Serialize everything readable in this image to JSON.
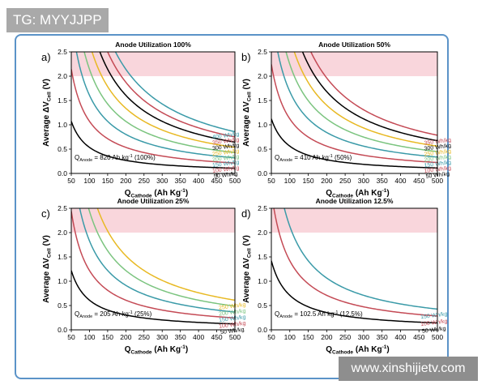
{
  "top_badge": "TG: MYYJJPP",
  "watermark": "www.xinshijietv.com",
  "chart_data": [
    {
      "panel_label": "a)",
      "type": "line",
      "title": "Anode Utilization 100%",
      "xlabel": "Q_Cathode (Ah Kg^-1)",
      "ylabel": "Average ΔV_Cell (V)",
      "xlim": [
        50,
        500
      ],
      "ylim": [
        0,
        2.5
      ],
      "xticks": [
        "50",
        "100",
        "150",
        "200",
        "250",
        "300",
        "350",
        "400",
        "450",
        "500"
      ],
      "yticks": [
        "0.0",
        "0.5",
        "1.0",
        "1.5",
        "2.0",
        "2.5"
      ],
      "shaded_band": [
        2.0,
        2.5
      ],
      "note": "Q_Anode = 820 Ah kg^-1 (100%)",
      "series": [
        {
          "name": "50 Wh/kg",
          "color": "#000000",
          "k": 53.6
        },
        {
          "name": "100 Wh/kg",
          "color": "#c44a55",
          "k": 107.2
        },
        {
          "name": "150 Wh/kg",
          "color": "#3a9aa8",
          "k": 160.7
        },
        {
          "name": "200 Wh/kg",
          "color": "#7bc47f",
          "k": 214.3
        },
        {
          "name": "250 Wh/kg",
          "color": "#e8b923",
          "k": 267.9
        },
        {
          "name": "300 Wh/kg",
          "color": "#000000",
          "k": 321.5
        },
        {
          "name": "350 Wh/kg",
          "color": "#c44a55",
          "k": 375.1
        },
        {
          "name": "400 Wh/kg",
          "color": "#3a9aa8",
          "k": 428.7
        }
      ]
    },
    {
      "panel_label": "b)",
      "type": "line",
      "title": "Anode Utilization 50%",
      "xlabel": "Q_Cathode (Ah Kg^-1)",
      "ylabel": "Average ΔV_Cell (V)",
      "xlim": [
        50,
        500
      ],
      "ylim": [
        0,
        2.5
      ],
      "xticks": [
        "50",
        "100",
        "150",
        "200",
        "250",
        "300",
        "350",
        "400",
        "450",
        "500"
      ],
      "yticks": [
        "0.0",
        "0.5",
        "1.0",
        "1.5",
        "2.0",
        "2.5"
      ],
      "shaded_band": [
        2.0,
        2.5
      ],
      "note": "Q_Anode = 410 Ah kg^-1 (50%)",
      "series": [
        {
          "name": "50 Wh/kg",
          "color": "#000000",
          "k": 56.1
        },
        {
          "name": "100 Wh/kg",
          "color": "#c44a55",
          "k": 112.2
        },
        {
          "name": "150 Wh/kg",
          "color": "#3a9aa8",
          "k": 168.3
        },
        {
          "name": "200 Wh/kg",
          "color": "#7bc47f",
          "k": 224.4
        },
        {
          "name": "250 Wh/kg",
          "color": "#e8b923",
          "k": 280.5
        },
        {
          "name": "300 Wh/kg",
          "color": "#000000",
          "k": 336.6
        },
        {
          "name": "350 Wh/kg",
          "color": "#c44a55",
          "k": 392.7
        }
      ]
    },
    {
      "panel_label": "c)",
      "type": "line",
      "title": "Anode Utilization 25%",
      "xlabel": "Q_Cathode (Ah Kg^-1)",
      "ylabel": "Average ΔV_Cell (V)",
      "xlim": [
        50,
        500
      ],
      "ylim": [
        0,
        2.5
      ],
      "xticks": [
        "50",
        "100",
        "150",
        "200",
        "250",
        "300",
        "350",
        "400",
        "450",
        "500"
      ],
      "yticks": [
        "0.0",
        "0.5",
        "1.0",
        "1.5",
        "2.0",
        "2.5"
      ],
      "shaded_band": [
        2.0,
        2.5
      ],
      "note": "Q_Anode = 205 Ah kg^-1 (25%)",
      "series": [
        {
          "name": "50 Wh/kg",
          "color": "#000000",
          "k": 61.0
        },
        {
          "name": "100 Wh/kg",
          "color": "#c44a55",
          "k": 122.0
        },
        {
          "name": "150 Wh/kg",
          "color": "#3a9aa8",
          "k": 183.0
        },
        {
          "name": "200 Wh/kg",
          "color": "#7bc47f",
          "k": 244.0
        },
        {
          "name": "250 Wh/kg",
          "color": "#e8b923",
          "k": 305.0
        }
      ]
    },
    {
      "panel_label": "d)",
      "type": "line",
      "title": "Anode Utilization 12.5%",
      "xlabel": "Q_Cathode (Ah Kg^-1)",
      "ylabel": "Average ΔV_Cell (V)",
      "xlim": [
        50,
        500
      ],
      "ylim": [
        0,
        2.5
      ],
      "xticks": [
        "50",
        "100",
        "150",
        "200",
        "250",
        "300",
        "350",
        "400",
        "450",
        "500"
      ],
      "yticks": [
        "0.0",
        "0.5",
        "1.0",
        "1.5",
        "2.0",
        "2.5"
      ],
      "shaded_band": [
        2.0,
        2.5
      ],
      "note": "Q_Anode = 102.5 Ah kg^-1 (12.5%)",
      "series": [
        {
          "name": "50 Wh/kg",
          "color": "#000000",
          "k": 71.0
        },
        {
          "name": "100 Wh/kg",
          "color": "#c44a55",
          "k": 142.0
        },
        {
          "name": "150 Wh/kg",
          "color": "#3a9aa8",
          "k": 213.0
        }
      ]
    }
  ]
}
